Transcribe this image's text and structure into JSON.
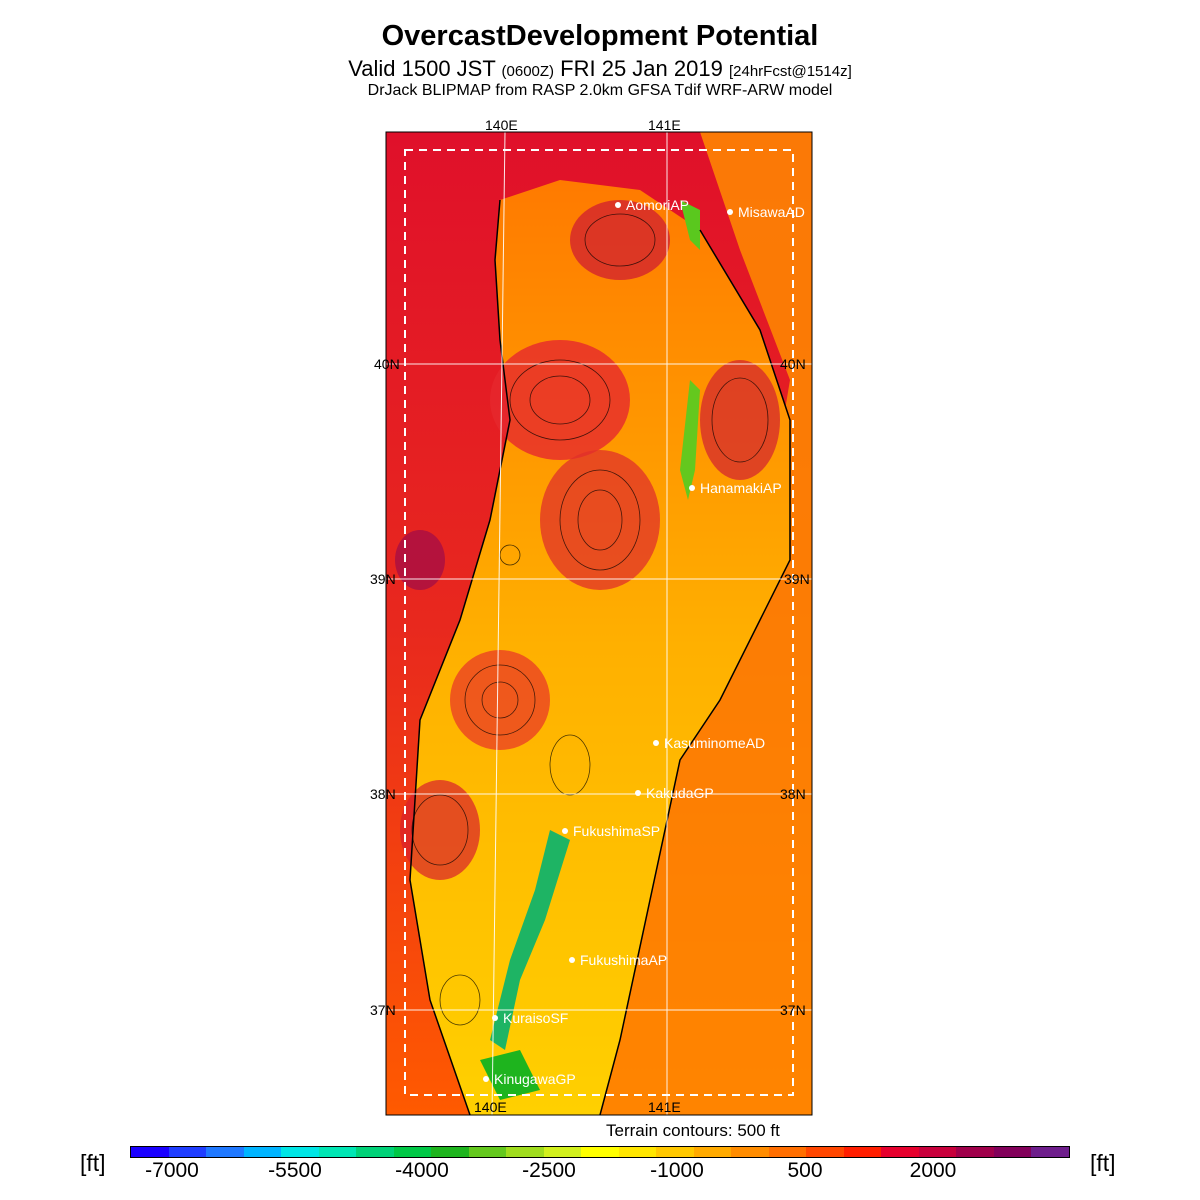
{
  "title": "OvercastDevelopment Potential",
  "subtitle": {
    "valid": "Valid 1500 JST",
    "zulu": "(0600Z)",
    "date": "FRI 25 Jan 2019",
    "forecast": "[24hrFcst@1514z]"
  },
  "model_line": "DrJack BLIPMAP from RASP 2.0km GFSA Tdif WRF-ARW model",
  "grid_labels": {
    "lon_top": [
      "140E",
      "141E"
    ],
    "lon_bottom": [
      "140E",
      "141E"
    ],
    "lat_left": [
      "40N",
      "39N",
      "38N",
      "37N"
    ],
    "lat_right": [
      "40N",
      "39N",
      "38N",
      "37N"
    ]
  },
  "stations": [
    {
      "name": "AomoriAP"
    },
    {
      "name": "MisawaAD"
    },
    {
      "name": "HanamakiAP"
    },
    {
      "name": "KasuminomeAD"
    },
    {
      "name": "KakudaGP"
    },
    {
      "name": "FukushimaSP"
    },
    {
      "name": "FukushimaAP"
    },
    {
      "name": "KuraisoSF"
    },
    {
      "name": "KinugawaGP"
    }
  ],
  "contour_note": "Terrain contours: 500 ft",
  "units": "[ft]",
  "colorbar": {
    "colors": [
      "#1a00ff",
      "#1f3dff",
      "#1f78ff",
      "#00b4ff",
      "#00e6e6",
      "#00e6b4",
      "#00d278",
      "#00c846",
      "#1eb41e",
      "#64c81e",
      "#a0dc1e",
      "#d2f01e",
      "#ffff00",
      "#ffe600",
      "#ffc800",
      "#ffaa00",
      "#ff8c00",
      "#ff6e00",
      "#ff4600",
      "#ff1e00",
      "#e6002d",
      "#c8003c",
      "#a0004b",
      "#82005a",
      "#6e1e8c"
    ],
    "labels": [
      "-7000",
      "-5500",
      "-4000",
      "-2500",
      "-1000",
      "500",
      "2000"
    ]
  }
}
